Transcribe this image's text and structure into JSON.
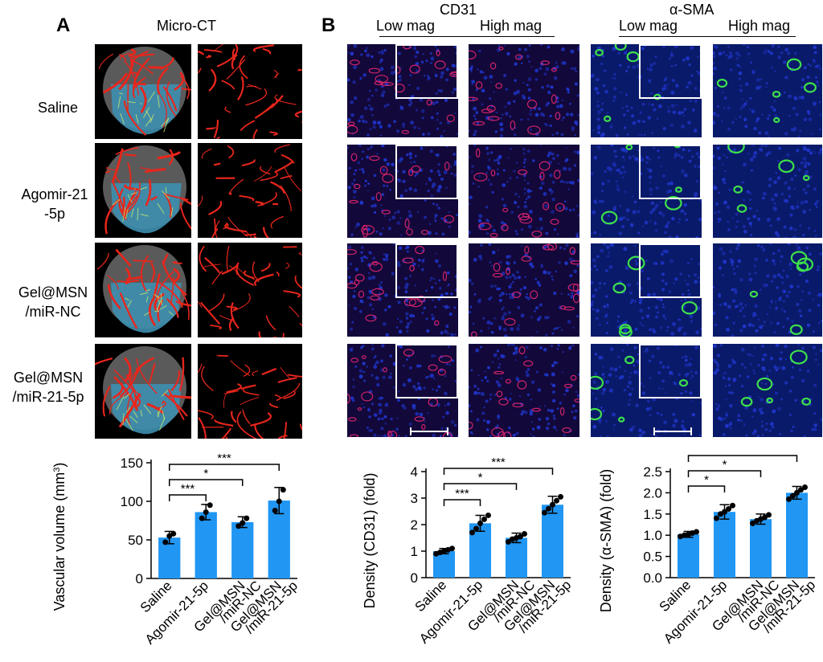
{
  "panel_a": {
    "letter": "A",
    "title": "Micro-CT",
    "rows": [
      {
        "label_line1": "Saline",
        "label_line2": ""
      },
      {
        "label_line1": "Agomir-21",
        "label_line2": "-5p"
      },
      {
        "label_line1": "Gel@MSN",
        "label_line2": "/miR-NC"
      },
      {
        "label_line1": "Gel@MSN",
        "label_line2": "/miR-21-5p"
      }
    ]
  },
  "panel_b": {
    "letter": "B",
    "cd31_title": "CD31",
    "sma_title": "α-SMA",
    "low_mag": "Low mag",
    "high_mag": "High mag"
  },
  "colors": {
    "bar": "#2196F3",
    "vessel_red": "#e8261c",
    "heart_grey": "#5a5a5a",
    "heart_blue": "#3d8fb0",
    "cd31_red": "#d0226a",
    "dapi_blue": "#1f35c8",
    "sma_green": "#3ee04a"
  },
  "chart_data": [
    {
      "type": "bar",
      "categories": [
        "Saline",
        "Agomir-21-5p",
        "Gel@MSN\n/miR-NC",
        "Gel@MSN\n/miR-21-5p"
      ],
      "tick_label_lines": [
        [
          "Saline"
        ],
        [
          "Agomir-21-5p"
        ],
        [
          "Gel@MSN",
          "/miR-NC"
        ],
        [
          "Gel@MSN",
          "/miR-21-5p"
        ]
      ],
      "values": [
        53,
        86,
        73,
        101
      ],
      "errors": [
        8,
        10,
        7,
        17
      ],
      "points": [
        [
          47,
          55,
          58
        ],
        [
          78,
          86,
          95
        ],
        [
          68,
          72,
          78
        ],
        [
          88,
          100,
          115
        ]
      ],
      "ylabel": "Vascular volume (mm",
      "ylabel_sup": "3",
      "ylabel_close": ")",
      "ylim": [
        0,
        150
      ],
      "yticks": [
        0,
        50,
        100,
        150
      ],
      "sig": [
        {
          "from": 0,
          "to": 1,
          "label": "***"
        },
        {
          "from": 0,
          "to": 2,
          "label": "*"
        },
        {
          "from": 0,
          "to": 3,
          "label": "***"
        }
      ]
    },
    {
      "type": "bar",
      "categories": [
        "Saline",
        "Agomir-21-5p",
        "Gel@MSN\n/miR-NC",
        "Gel@MSN\n/miR-21-5p"
      ],
      "tick_label_lines": [
        [
          "Saline"
        ],
        [
          "Agomir-21-5p"
        ],
        [
          "Gel@MSN",
          "/miR-NC"
        ],
        [
          "Gel@MSN",
          "/miR-21-5p"
        ]
      ],
      "values": [
        1.0,
        2.05,
        1.5,
        2.75
      ],
      "errors": [
        0.1,
        0.3,
        0.18,
        0.32
      ],
      "points": [
        [
          0.9,
          0.95,
          1.0,
          1.05,
          1.1
        ],
        [
          1.7,
          1.85,
          2.05,
          2.2,
          2.35
        ],
        [
          1.35,
          1.45,
          1.5,
          1.55,
          1.65
        ],
        [
          2.45,
          2.6,
          2.75,
          2.9,
          3.05
        ]
      ],
      "ylabel": "Density (CD31) (fold)",
      "ylabel_sup": "",
      "ylabel_close": "",
      "ylim": [
        0,
        4
      ],
      "yticks": [
        0,
        1,
        2,
        3,
        4
      ],
      "sig": [
        {
          "from": 0,
          "to": 1,
          "label": "***"
        },
        {
          "from": 0,
          "to": 2,
          "label": "*"
        },
        {
          "from": 0,
          "to": 3,
          "label": "***"
        }
      ]
    },
    {
      "type": "bar",
      "categories": [
        "Saline",
        "Agomir-21-5p",
        "Gel@MSN\n/miR-NC",
        "Gel@MSN\n/miR-21-5p"
      ],
      "tick_label_lines": [
        [
          "Saline"
        ],
        [
          "Agomir-21-5p"
        ],
        [
          "Gel@MSN",
          "/miR-NC"
        ],
        [
          "Gel@MSN",
          "/miR-21-5p"
        ]
      ],
      "values": [
        1.02,
        1.55,
        1.38,
        2.0
      ],
      "errors": [
        0.07,
        0.17,
        0.12,
        0.15
      ],
      "points": [
        [
          0.97,
          1.0,
          1.02,
          1.05,
          1.08
        ],
        [
          1.4,
          1.5,
          1.55,
          1.62,
          1.7
        ],
        [
          1.28,
          1.34,
          1.38,
          1.42,
          1.48
        ],
        [
          1.85,
          1.93,
          2.0,
          2.07,
          2.13
        ]
      ],
      "ylabel": "Density (α-SMA) (fold)",
      "ylabel_sup": "",
      "ylabel_close": "",
      "ylim": [
        0,
        2.5
      ],
      "yticks": [
        0,
        0.5,
        1.0,
        1.5,
        2.0,
        2.5
      ],
      "sig": [
        {
          "from": 0,
          "to": 1,
          "label": "*"
        },
        {
          "from": 0,
          "to": 2,
          "label": "*"
        },
        {
          "from": 0,
          "to": 3,
          "label": "***"
        }
      ]
    }
  ]
}
